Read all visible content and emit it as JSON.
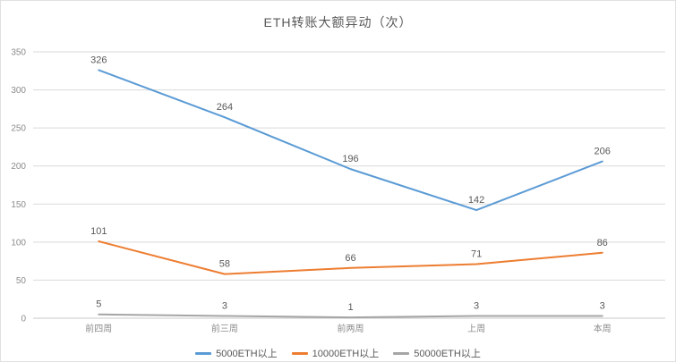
{
  "chart_data": {
    "type": "line",
    "title": "ETH转账大额异动（次）",
    "categories": [
      "前四周",
      "前三周",
      "前两周",
      "上周",
      "本周"
    ],
    "series": [
      {
        "name": "5000ETH以上",
        "color": "#5B9BD5",
        "values": [
          326,
          264,
          196,
          142,
          206
        ]
      },
      {
        "name": "10000ETH以上",
        "color": "#ED7D31",
        "values": [
          101,
          58,
          66,
          71,
          86
        ]
      },
      {
        "name": "50000ETH以上",
        "color": "#A5A5A5",
        "values": [
          5,
          3,
          1,
          3,
          3
        ]
      }
    ],
    "ylim": [
      0,
      350
    ],
    "y_ticks": [
      0,
      50,
      100,
      150,
      200,
      250,
      300,
      350
    ],
    "grid": true,
    "legend_position": "bottom"
  }
}
